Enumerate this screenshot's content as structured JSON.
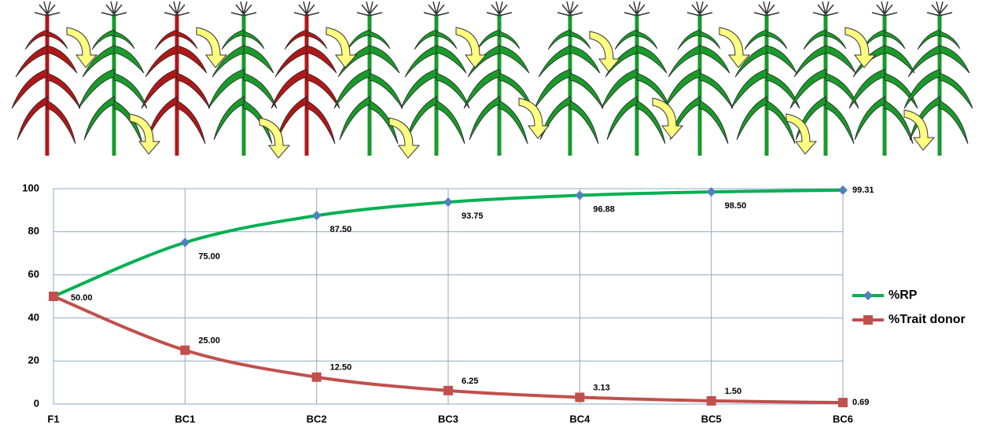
{
  "chart_data": {
    "type": "line",
    "categories": [
      "F1",
      "BC1",
      "BC2",
      "BC3",
      "BC4",
      "BC5",
      "BC6"
    ],
    "series": [
      {
        "name": "%RP",
        "color": "#00b050",
        "marker": "diamond",
        "marker_color": "#4f81bd",
        "values": [
          50,
          75,
          87.5,
          93.75,
          96.88,
          98.5,
          99.31
        ],
        "value_labels": [
          "50.00",
          "75.00",
          "87.50",
          "93.75",
          "96.88",
          "98.50",
          "99.31"
        ]
      },
      {
        "name": "%Trait donor",
        "color": "#c0504d",
        "marker": "square",
        "marker_color": "#c0504d",
        "values": [
          50,
          25,
          12.5,
          6.25,
          3.13,
          1.5,
          0.69
        ],
        "value_labels": [
          null,
          "25.00",
          "12.50",
          "6.25",
          "3.13",
          "1.50",
          "0.69"
        ]
      }
    ],
    "ylim": [
      0,
      100
    ],
    "yticks": [
      0,
      20,
      40,
      60,
      80,
      100
    ],
    "grid": true,
    "legend": "right"
  }
}
